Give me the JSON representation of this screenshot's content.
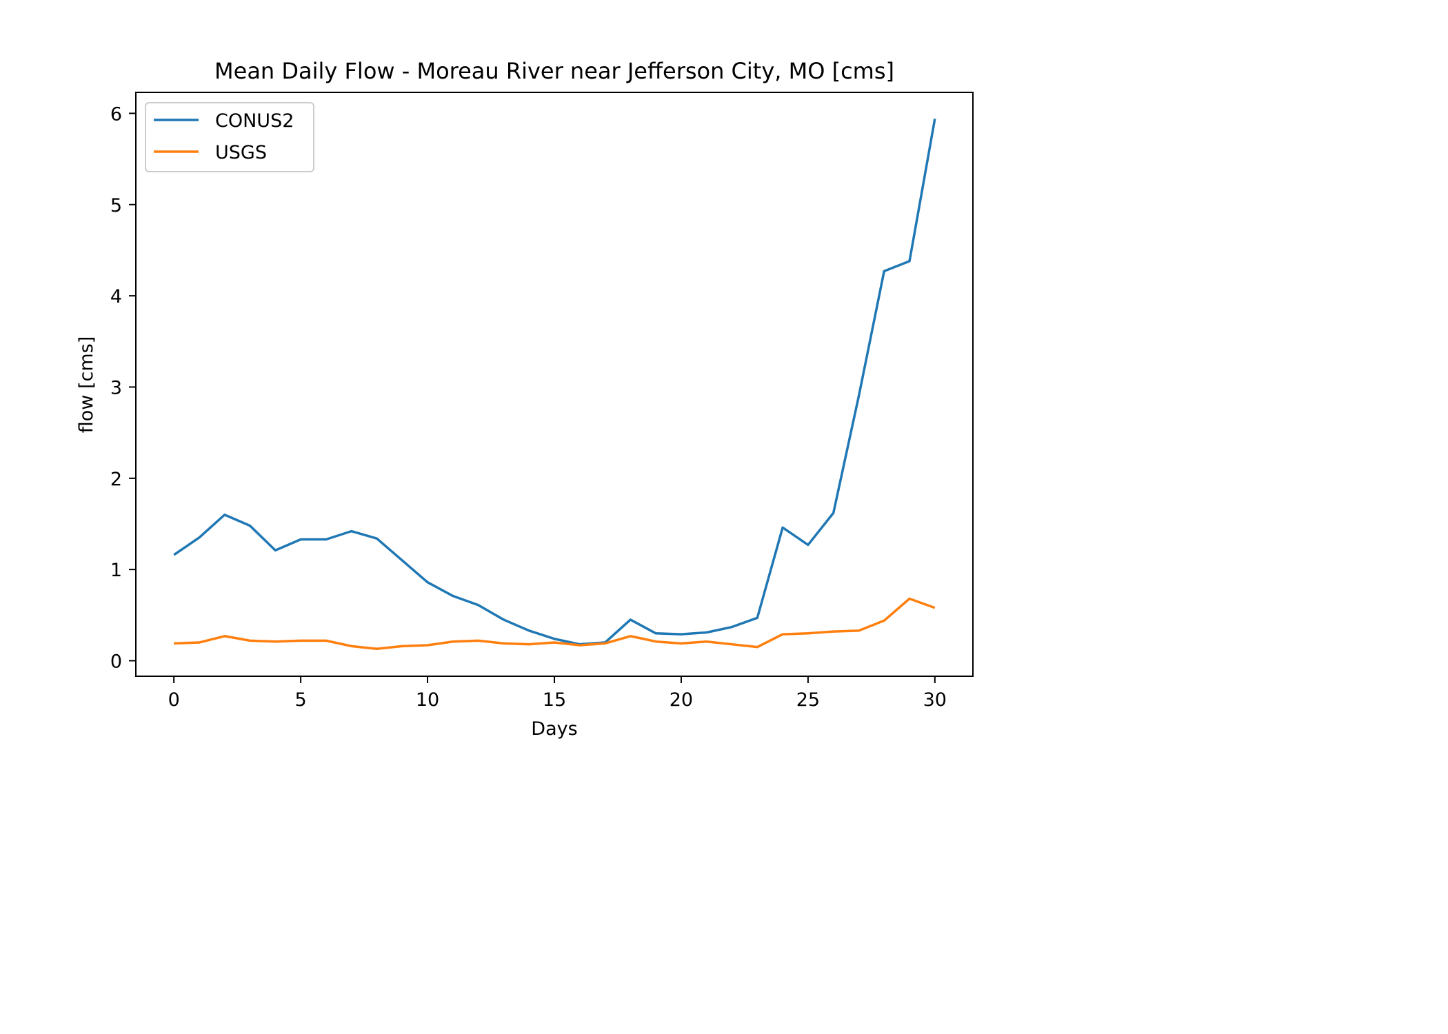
{
  "chart_data": {
    "type": "line",
    "title": "Mean Daily Flow - Moreau River near Jefferson City, MO [cms]",
    "xlabel": "Days",
    "ylabel": "flow [cms]",
    "xlim": [
      -1.5,
      31.5
    ],
    "ylim": [
      -0.17,
      6.23
    ],
    "xticks": [
      0,
      5,
      10,
      15,
      20,
      25,
      30
    ],
    "yticks": [
      0,
      1,
      2,
      3,
      4,
      5,
      6
    ],
    "x_tick_labels": [
      "0",
      "5",
      "10",
      "15",
      "20",
      "25",
      "30"
    ],
    "y_tick_labels": [
      "0",
      "1",
      "2",
      "3",
      "4",
      "5",
      "6"
    ],
    "grid": false,
    "legend_position": "top-left",
    "x": [
      0,
      1,
      2,
      3,
      4,
      5,
      6,
      7,
      8,
      9,
      10,
      11,
      12,
      13,
      14,
      15,
      16,
      17,
      18,
      19,
      20,
      21,
      22,
      23,
      24,
      25,
      26,
      27,
      28,
      29,
      30
    ],
    "series": [
      {
        "name": "CONUS2",
        "color": "#1f77b4",
        "values": [
          1.16,
          1.35,
          1.6,
          1.48,
          1.21,
          1.33,
          1.33,
          1.42,
          1.34,
          1.1,
          0.86,
          0.71,
          0.61,
          0.45,
          0.33,
          0.24,
          0.18,
          0.2,
          0.45,
          0.3,
          0.29,
          0.31,
          0.37,
          0.47,
          1.46,
          1.27,
          1.62,
          2.9,
          4.27,
          4.38,
          5.94
        ]
      },
      {
        "name": "USGS",
        "color": "#ff7f0e",
        "values": [
          0.19,
          0.2,
          0.27,
          0.22,
          0.21,
          0.22,
          0.22,
          0.16,
          0.13,
          0.16,
          0.17,
          0.21,
          0.22,
          0.19,
          0.18,
          0.2,
          0.17,
          0.19,
          0.27,
          0.21,
          0.19,
          0.21,
          0.18,
          0.15,
          0.29,
          0.3,
          0.32,
          0.33,
          0.44,
          0.68,
          0.58
        ]
      }
    ]
  }
}
